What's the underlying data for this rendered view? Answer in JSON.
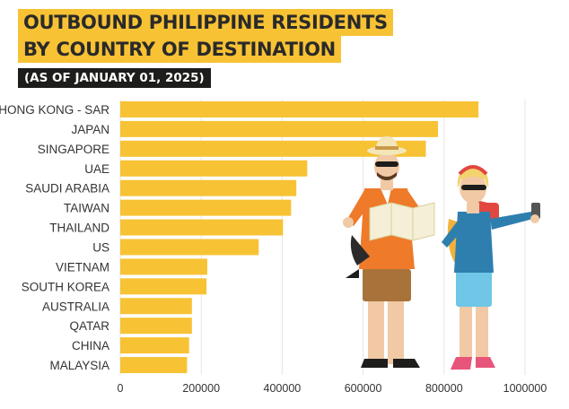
{
  "title": {
    "line1": "OUTBOUND PHILIPPINE RESIDENTS",
    "line2": "BY COUNTRY OF DESTINATION"
  },
  "subtitle": "(AS OF JANUARY 01, 2025)",
  "colors": {
    "bar": "#f7c234",
    "title_bg": "#f7c234",
    "subtitle_bg": "#1d1d1b",
    "grid": "#e6e6e6"
  },
  "illustration": "two-tourists-illustration",
  "chart_data": {
    "type": "bar",
    "orientation": "horizontal",
    "title": "OUTBOUND PHILIPPINE RESIDENTS BY COUNTRY OF DESTINATION",
    "subtitle": "(AS OF JANUARY 01, 2025)",
    "xlabel": "",
    "ylabel": "",
    "categories": [
      "HONG KONG - SAR",
      "JAPAN",
      "SINGAPORE",
      "UAE",
      "SAUDI ARABIA",
      "TAIWAN",
      "THAILAND",
      "US",
      "VIETNAM",
      "SOUTH KOREA",
      "AUSTRALIA",
      "QATAR",
      "CHINA",
      "MALAYSIA"
    ],
    "values": [
      885000,
      785000,
      755000,
      462000,
      435000,
      422000,
      402000,
      342000,
      215000,
      213000,
      177000,
      177000,
      170000,
      165000
    ],
    "xlim": [
      0,
      1000000
    ],
    "xticks": [
      "0",
      "200000",
      "400000",
      "600000",
      "800000",
      "1000000"
    ],
    "grid": true,
    "legend": "none"
  }
}
